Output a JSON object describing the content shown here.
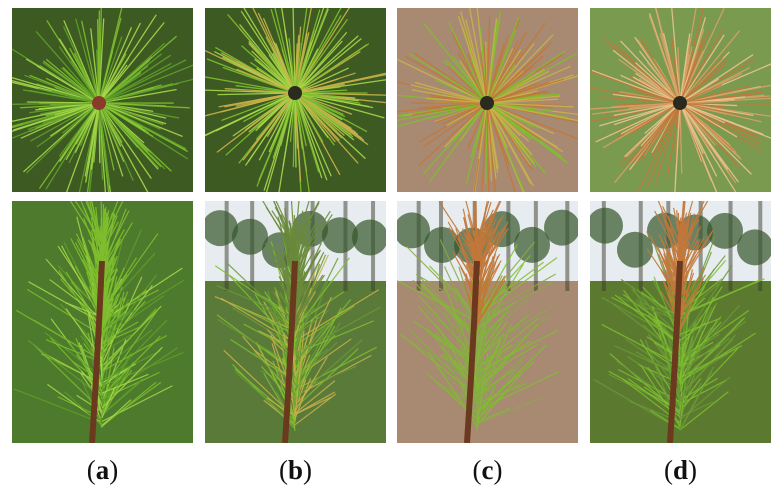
{
  "figure": {
    "captions": [
      {
        "open": "(",
        "letter": "a",
        "close": ")"
      },
      {
        "open": "(",
        "letter": "b",
        "close": ")"
      },
      {
        "open": "(",
        "letter": "c",
        "close": ")"
      },
      {
        "open": "(",
        "letter": "d",
        "close": ")"
      }
    ],
    "colors": {
      "healthy_needle": "#7fbf2e",
      "healthy_needle_light": "#a8d84a",
      "yellowing_needle": "#c9b24a",
      "browning_needle": "#c2783a",
      "dead_needle": "#d9a066",
      "forest_background": "#3d5a22",
      "soil_background": "#a88a72",
      "sky": "#e6ecef"
    },
    "panels": [
      {
        "id": "a",
        "stage": "healthy",
        "top_view": "rosette-healthy",
        "side_view": "shoot-healthy"
      },
      {
        "id": "b",
        "stage": "early",
        "top_view": "rosette-early",
        "side_view": "shoot-early"
      },
      {
        "id": "c",
        "stage": "advanced",
        "top_view": "rosette-advanced",
        "side_view": "shoot-advanced"
      },
      {
        "id": "d",
        "stage": "severe",
        "top_view": "rosette-severe",
        "side_view": "shoot-severe"
      }
    ]
  }
}
